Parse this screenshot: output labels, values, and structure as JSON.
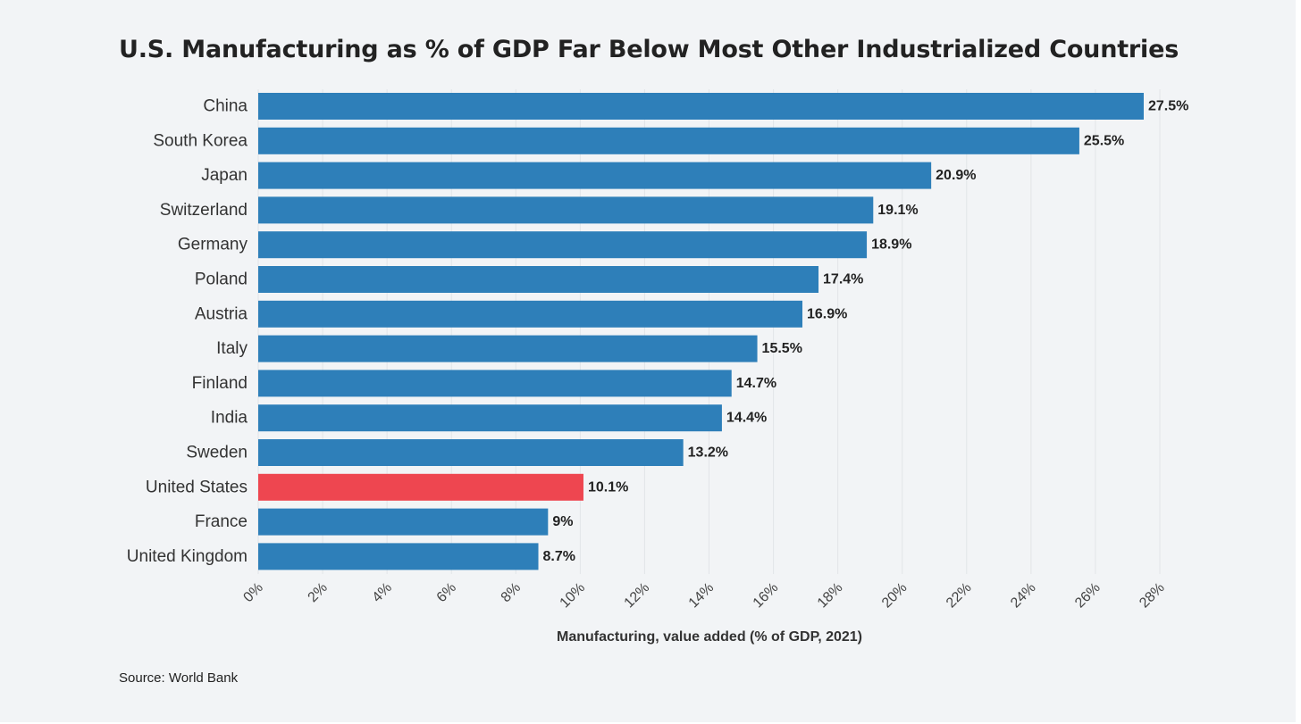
{
  "title": "U.S. Manufacturing as % of GDP Far Below Most Other Industrialized Countries",
  "source": "Source: World Bank",
  "colors": {
    "bar": "#2e7fb9",
    "highlight": "#ee4650",
    "background": "#f2f4f6",
    "grid": "#e2e5e8"
  },
  "chart_data": {
    "type": "bar",
    "orientation": "horizontal",
    "title": "U.S. Manufacturing as % of GDP Far Below Most Other Industrialized Countries",
    "xlabel": "Manufacturing, value added (% of GDP, 2021)",
    "ylabel": "",
    "xlim": [
      0,
      28
    ],
    "x_ticks": [
      0,
      2,
      4,
      6,
      8,
      10,
      12,
      14,
      16,
      18,
      20,
      22,
      24,
      26,
      28
    ],
    "x_tick_labels": [
      "0%",
      "2%",
      "4%",
      "6%",
      "8%",
      "10%",
      "12%",
      "14%",
      "16%",
      "18%",
      "20%",
      "22%",
      "24%",
      "26%",
      "28%"
    ],
    "grid": true,
    "categories": [
      "China",
      "South Korea",
      "Japan",
      "Switzerland",
      "Germany",
      "Poland",
      "Austria",
      "Italy",
      "Finland",
      "India",
      "Sweden",
      "United States",
      "France",
      "United Kingdom"
    ],
    "values": [
      27.5,
      25.5,
      20.9,
      19.1,
      18.9,
      17.4,
      16.9,
      15.5,
      14.7,
      14.4,
      13.2,
      10.1,
      9,
      8.7
    ],
    "data_labels": [
      "27.5%",
      "25.5%",
      "20.9%",
      "19.1%",
      "18.9%",
      "17.4%",
      "16.9%",
      "15.5%",
      "14.7%",
      "14.4%",
      "13.2%",
      "10.1%",
      "9%",
      "8.7%"
    ],
    "highlight_category": "United States",
    "source": "Source: World Bank"
  }
}
